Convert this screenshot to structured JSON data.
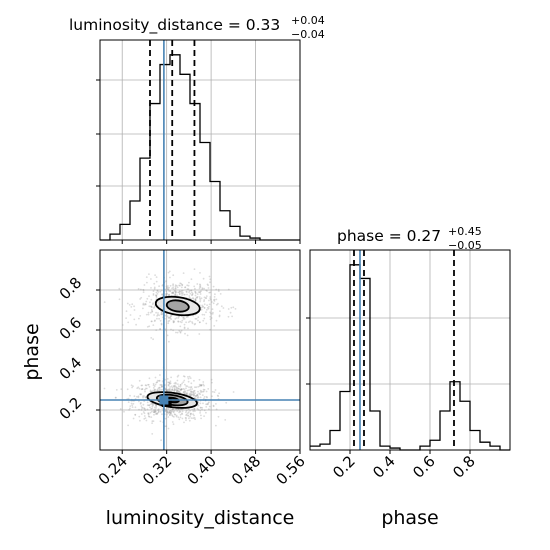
{
  "figure": {
    "panel_titles": {
      "luminosity_distance": {
        "label": "luminosity_distance = 0.33",
        "sup": "+0.04",
        "sub": "−0.04"
      },
      "phase": {
        "label": "phase = 0.27",
        "sup": "+0.45",
        "sub": "−0.05"
      }
    },
    "x_labels": {
      "luminosity_distance": "luminosity_distance",
      "phase": "phase"
    },
    "y_labels": {
      "phase": "phase"
    }
  },
  "chart_data": {
    "type": "corner",
    "parameters": [
      "luminosity_distance",
      "phase"
    ],
    "truths": {
      "luminosity_distance": 0.315,
      "phase": 0.25
    },
    "colors": {
      "truth": "#4682b4",
      "hist": "#000000",
      "grid": "#b0b0b0",
      "points": "#9a9a9a"
    },
    "luminosity_distance": {
      "range": [
        0.2,
        0.56
      ],
      "ticks": [
        0.24,
        0.32,
        0.4,
        0.48,
        0.56
      ],
      "tick_labels": [
        "0.24",
        "0.32",
        "0.40",
        "0.48",
        "0.56"
      ],
      "quantiles": [
        0.29,
        0.33,
        0.37
      ],
      "hist_edges": [
        0.2,
        0.218,
        0.236,
        0.254,
        0.272,
        0.29,
        0.308,
        0.326,
        0.344,
        0.362,
        0.38,
        0.398,
        0.416,
        0.434,
        0.452,
        0.47,
        0.488,
        0.506,
        0.524,
        0.542,
        0.56
      ],
      "hist_counts": [
        0,
        3,
        8,
        20,
        42,
        70,
        90,
        95,
        85,
        70,
        50,
        30,
        15,
        7,
        2,
        1,
        0,
        0,
        0,
        0
      ]
    },
    "phase": {
      "range": [
        0.0,
        1.0
      ],
      "ticks": [
        0.2,
        0.4,
        0.6,
        0.8
      ],
      "tick_labels": [
        "0.2",
        "0.4",
        "0.6",
        "0.8"
      ],
      "quantiles": [
        0.22,
        0.27,
        0.72
      ],
      "hist_edges": [
        0.0,
        0.05,
        0.1,
        0.15,
        0.2,
        0.25,
        0.3,
        0.35,
        0.4,
        0.45,
        0.5,
        0.55,
        0.6,
        0.65,
        0.7,
        0.75,
        0.8,
        0.85,
        0.9,
        0.95,
        1.0
      ],
      "hist_counts": [
        2,
        3,
        10,
        30,
        95,
        88,
        20,
        2,
        1,
        0,
        0,
        2,
        5,
        20,
        35,
        25,
        10,
        4,
        2,
        0
      ]
    },
    "scatter_2d": {
      "x": "luminosity_distance",
      "y": "phase",
      "density_peak": {
        "luminosity_distance": 0.32,
        "phase": 0.24
      },
      "modes": [
        {
          "center": {
            "luminosity_distance": 0.33,
            "phase": 0.25
          },
          "contours": [
            {
              "rx": 0.012,
              "ry": 0.02,
              "level": 1
            },
            {
              "rx": 0.028,
              "ry": 0.045,
              "level": 2
            },
            {
              "rx": 0.045,
              "ry": 0.065,
              "level": 3
            }
          ]
        },
        {
          "center": {
            "luminosity_distance": 0.34,
            "phase": 0.72
          },
          "contours": [
            {
              "rx": 0.02,
              "ry": 0.05,
              "level": 2
            },
            {
              "rx": 0.04,
              "ry": 0.08,
              "level": 3
            }
          ]
        }
      ]
    }
  }
}
